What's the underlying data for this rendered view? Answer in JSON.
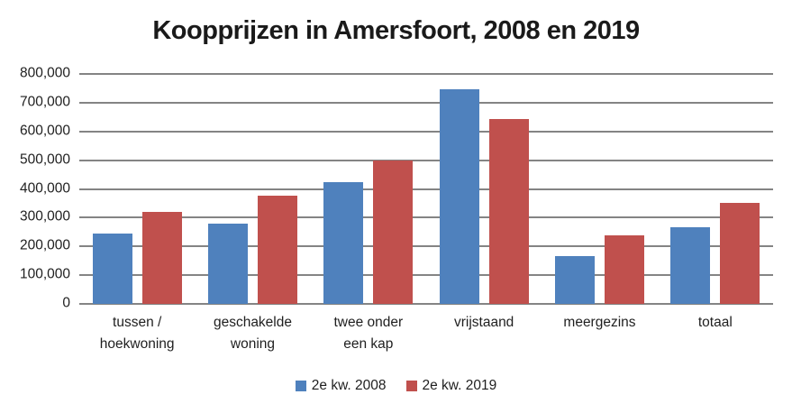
{
  "chart_data": {
    "type": "bar",
    "title": "Koopprijzen in Amersfoort, 2008 en 2019",
    "xlabel": "",
    "ylabel": "",
    "categories": [
      "tussen / hoekwoning",
      "geschakelde woning",
      "twee onder een kap",
      "vrijstaand",
      "meergezins",
      "totaal"
    ],
    "series": [
      {
        "name": "2e kw. 2008",
        "color": "#4F81BD",
        "values": [
          245000,
          278000,
          423000,
          748000,
          165000,
          268000
        ]
      },
      {
        "name": "2e kw. 2019",
        "color": "#C0504D",
        "values": [
          320000,
          375000,
          500000,
          642000,
          240000,
          350000
        ]
      }
    ],
    "ylim": [
      0,
      800000
    ],
    "ytick_interval": 100000,
    "ytick_labels": [
      "0",
      "100,000",
      "200,000",
      "300,000",
      "400,000",
      "500,000",
      "600,000",
      "700,000",
      "800,000"
    ],
    "grid": true,
    "gridline_color": "#848484",
    "legend_position": "bottom"
  },
  "colors": {
    "background": "#ffffff",
    "text": "#1f1f1f",
    "series_2008": "#4F81BD",
    "series_2019": "#C0504D"
  }
}
